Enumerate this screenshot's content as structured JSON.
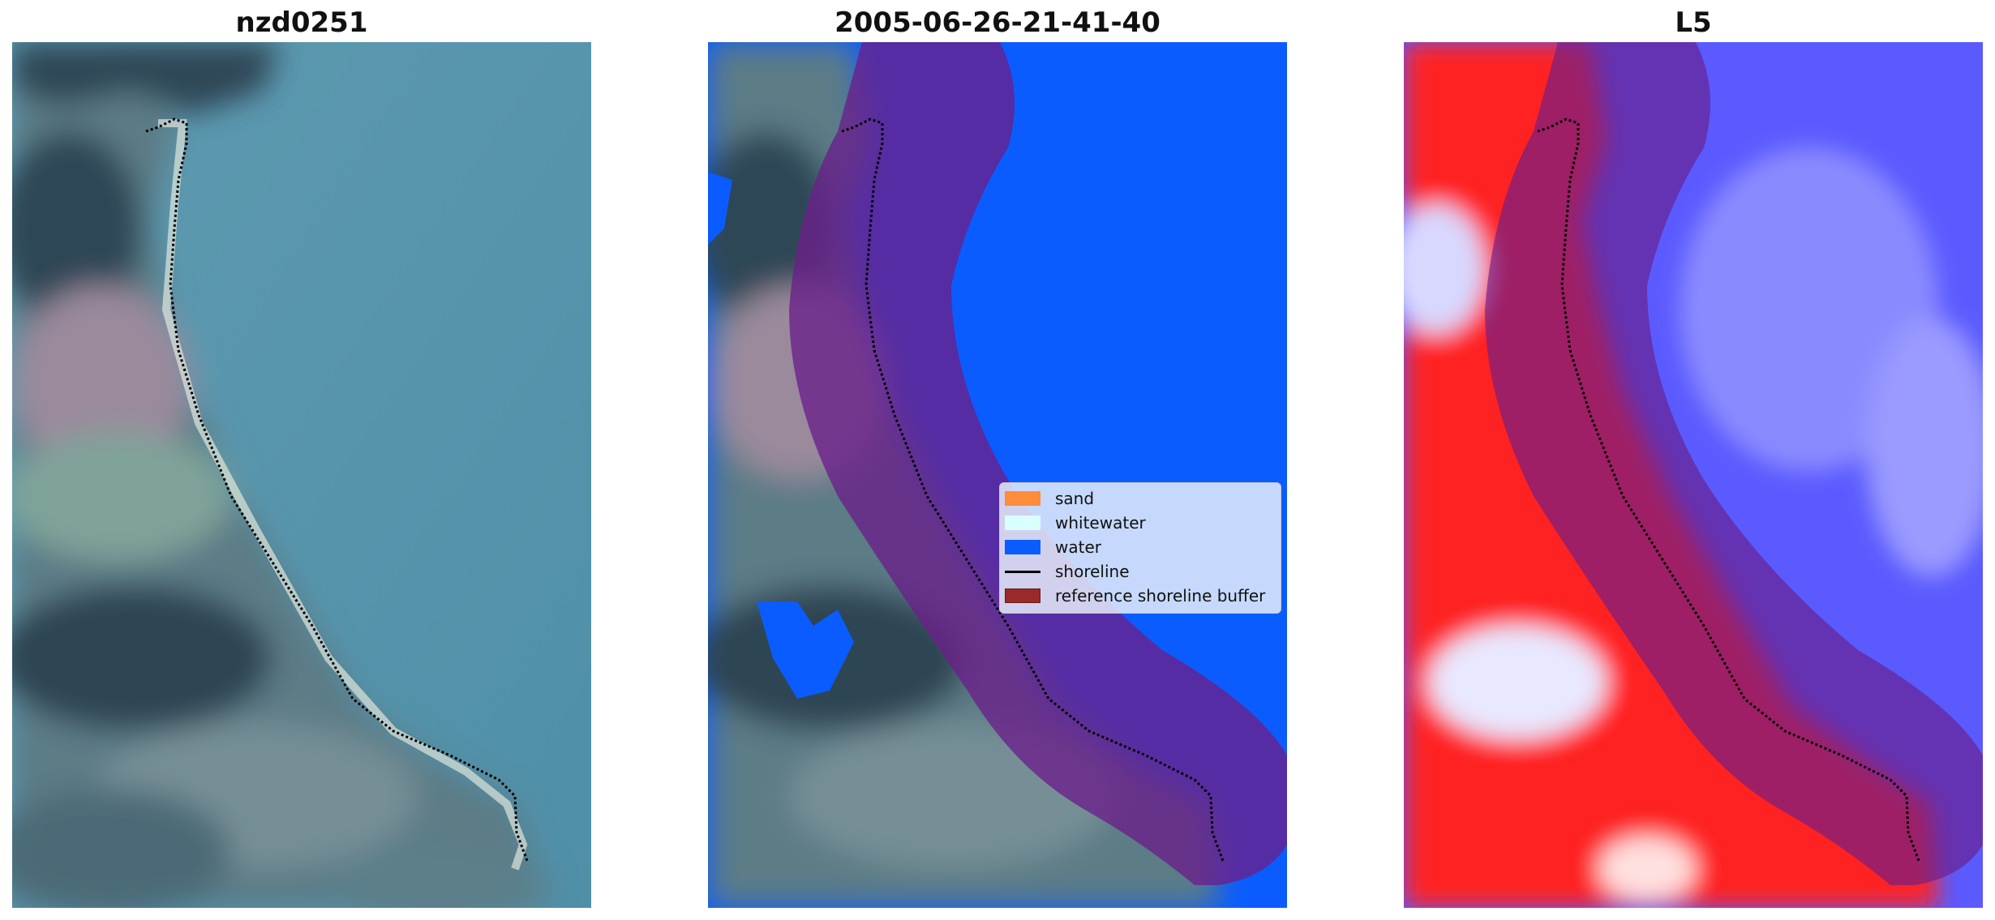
{
  "panels": [
    {
      "title": "nzd0251"
    },
    {
      "title": "2005-06-26-21-41-40"
    },
    {
      "title": "L5"
    }
  ],
  "legend": {
    "items": [
      {
        "label": "sand",
        "color": "#ff8c3b",
        "kind": "patch"
      },
      {
        "label": "whitewater",
        "color": "#d9ffff",
        "kind": "patch"
      },
      {
        "label": "water",
        "color": "#0a5cff",
        "kind": "patch"
      },
      {
        "label": "shoreline",
        "color": "#000000",
        "kind": "line"
      },
      {
        "label": "reference shoreline buffer",
        "color": "#9b2a2a",
        "kind": "patch"
      }
    ]
  },
  "colors": {
    "water_class": "#0a5cff",
    "buffer": "#6a1f8a",
    "index_positive": "#ff1a1a",
    "index_negative": "#3a3aff"
  }
}
